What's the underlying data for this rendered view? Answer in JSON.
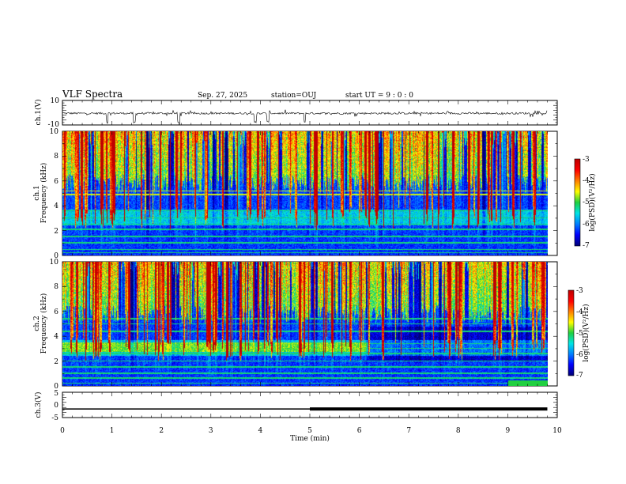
{
  "header": {
    "title": "VLF Spectra",
    "date": "Sep. 27, 2025",
    "station": "station=OUJ",
    "start": "start UT =  9 : 0 : 0"
  },
  "chart_data": [
    {
      "type": "line",
      "name": "ch1-waveform",
      "ylabel": "ch.1(V)",
      "ylim": [
        -10,
        10
      ],
      "yticks": [
        "10",
        "-10"
      ],
      "baseline": -0.5,
      "xlim": [
        0,
        10
      ]
    },
    {
      "type": "heatmap",
      "name": "ch1-spectrogram",
      "ylabel": "ch.1\nFrequency (kHz)",
      "ylabel_line1": "ch.1",
      "ylabel_line2": "Frequency (kHz)",
      "ylim": [
        0,
        10
      ],
      "yticks": [
        "0",
        "2",
        "4",
        "6",
        "8",
        "10"
      ],
      "xlim": [
        0,
        9.8
      ],
      "colorbar": {
        "label": "log(PSD)(V²/Hz)",
        "range": [
          -7,
          -3
        ],
        "ticks": [
          "-3",
          "-4",
          "-5",
          "-6",
          "-7"
        ]
      },
      "hum_lines_khz": [
        0.2,
        0.45,
        1.0,
        1.5,
        2.1,
        2.5,
        3.0,
        3.6,
        4.9,
        5.2
      ],
      "yellow_lines_khz": [
        4.9,
        5.2
      ]
    },
    {
      "type": "heatmap",
      "name": "ch2-spectrogram",
      "ylabel": "ch.2\nFrequency (kHz)",
      "ylabel_line1": "ch.2",
      "ylabel_line2": "Frequency (kHz)",
      "ylim": [
        0,
        10
      ],
      "yticks": [
        "0",
        "2",
        "4",
        "6",
        "8",
        "10"
      ],
      "xlim": [
        0,
        9.8
      ],
      "colorbar": {
        "label": "log(PSD)(V²/Hz)",
        "range": [
          -7,
          -3
        ],
        "ticks": [
          "-3",
          "-4",
          "-5",
          "-6",
          "-7"
        ]
      },
      "band_3khz_until_min": 6.15,
      "hum_lines_khz": [
        0.2,
        0.6,
        1.0,
        1.5,
        2.0,
        2.6,
        3.0,
        3.4,
        4.4,
        5.0,
        5.4
      ]
    },
    {
      "type": "line",
      "name": "ch3-level",
      "ylabel": "ch.3(V)",
      "ylim": [
        -5,
        5
      ],
      "yticks": [
        "5",
        "0",
        "-5"
      ],
      "series": [
        {
          "name": "ch3",
          "x": [
            0,
            5,
            5,
            9.8
          ],
          "y": [
            -1.6,
            -1.6,
            -1.6,
            -1.6
          ],
          "widths": [
            1.5,
            4
          ]
        }
      ]
    }
  ],
  "xaxis": {
    "label": "Time (min)",
    "ticks": [
      "0",
      "1",
      "2",
      "3",
      "4",
      "5",
      "6",
      "7",
      "8",
      "9",
      "10"
    ],
    "range": [
      0,
      10
    ]
  },
  "colors": {
    "background": "#ffffff",
    "axis": "#000000",
    "colormap": [
      "#00007a",
      "#0000ff",
      "#0080ff",
      "#00e5e5",
      "#20d040",
      "#ffff00",
      "#ff8000",
      "#ff0000",
      "#c00000"
    ]
  }
}
